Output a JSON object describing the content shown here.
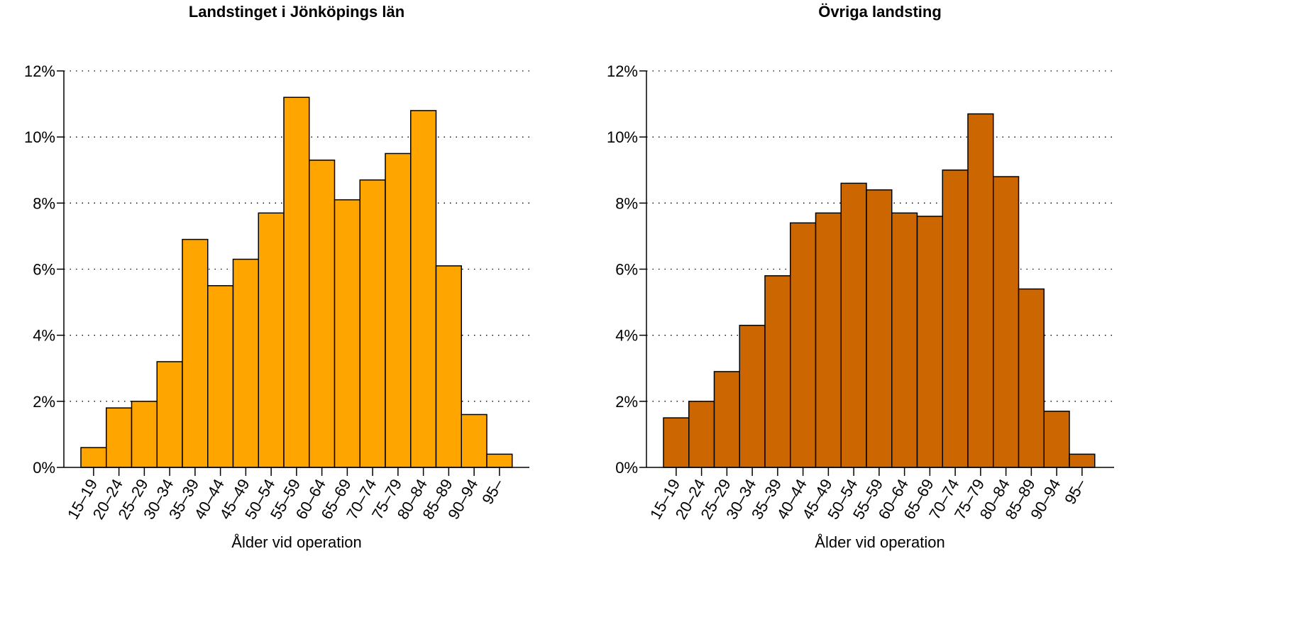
{
  "chart_data": [
    {
      "type": "bar",
      "title": "Landstinget i Jönköpings län",
      "xlabel": "Ålder vid operation",
      "ylabel": "",
      "ylim": [
        0,
        12
      ],
      "yticks": [
        0,
        2,
        4,
        6,
        8,
        10,
        12
      ],
      "ytick_labels": [
        "0%",
        "2%",
        "4%",
        "6%",
        "8%",
        "10%",
        "12%"
      ],
      "grid": "horizontal-dotted",
      "bar_color": "#FFA500",
      "categories": [
        "15–19",
        "20–24",
        "25–29",
        "30–34",
        "35–39",
        "40–44",
        "45–49",
        "50–54",
        "55–59",
        "60–64",
        "65–69",
        "70–74",
        "75–79",
        "80–84",
        "85–89",
        "90–94",
        "95–"
      ],
      "values": [
        0.6,
        1.8,
        2.0,
        3.2,
        6.9,
        5.5,
        6.3,
        7.7,
        11.2,
        9.3,
        8.1,
        8.7,
        9.5,
        10.8,
        6.1,
        1.6,
        0.4
      ]
    },
    {
      "type": "bar",
      "title": "Övriga landsting",
      "xlabel": "Ålder vid operation",
      "ylabel": "",
      "ylim": [
        0,
        12
      ],
      "yticks": [
        0,
        2,
        4,
        6,
        8,
        10,
        12
      ],
      "ytick_labels": [
        "0%",
        "2%",
        "4%",
        "6%",
        "8%",
        "10%",
        "12%"
      ],
      "grid": "horizontal-dotted",
      "bar_color": "#CC6600",
      "categories": [
        "15–19",
        "20–24",
        "25–29",
        "30–34",
        "35–39",
        "40–44",
        "45–49",
        "50–54",
        "55–59",
        "60–64",
        "65–69",
        "70–74",
        "75–79",
        "80–84",
        "85–89",
        "90–94",
        "95–"
      ],
      "values": [
        1.5,
        2.0,
        2.9,
        4.3,
        5.8,
        7.4,
        7.7,
        8.6,
        8.4,
        7.7,
        7.6,
        9.0,
        10.7,
        8.8,
        5.4,
        1.7,
        0.4
      ]
    }
  ]
}
